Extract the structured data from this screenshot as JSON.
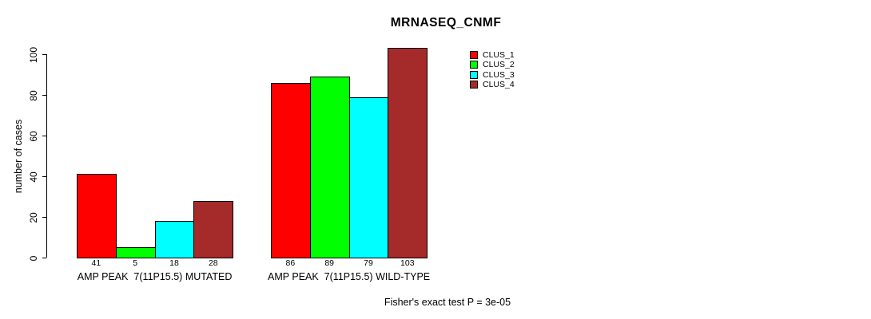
{
  "title": "MRNASEQ_CNMF",
  "footer": "Fisher's exact test P = 3e-05",
  "chart_data": {
    "type": "bar",
    "title": "MRNASEQ_CNMF",
    "xlabel": "",
    "ylabel": "number of cases",
    "ylim": [
      0,
      100
    ],
    "yticks": [
      0,
      20,
      40,
      60,
      80,
      100
    ],
    "grid": false,
    "legend_position": "top-right",
    "categories": [
      "AMP PEAK  7(11P15.5) MUTATED",
      "AMP PEAK  7(11P15.5) WILD-TYPE"
    ],
    "series": [
      {
        "name": "CLUS_1",
        "color": "#FF0000",
        "values": [
          41,
          86
        ]
      },
      {
        "name": "CLUS_2",
        "color": "#00FF00",
        "values": [
          5,
          89
        ]
      },
      {
        "name": "CLUS_3",
        "color": "#00FFFF",
        "values": [
          18,
          79
        ]
      },
      {
        "name": "CLUS_4",
        "color": "#A52A2A",
        "values": [
          28,
          103
        ]
      }
    ],
    "bar_value_labels": [
      [
        41,
        5,
        18,
        28
      ],
      [
        86,
        89,
        79,
        103
      ]
    ],
    "annotation": "Fisher's exact test P = 3e-05"
  }
}
